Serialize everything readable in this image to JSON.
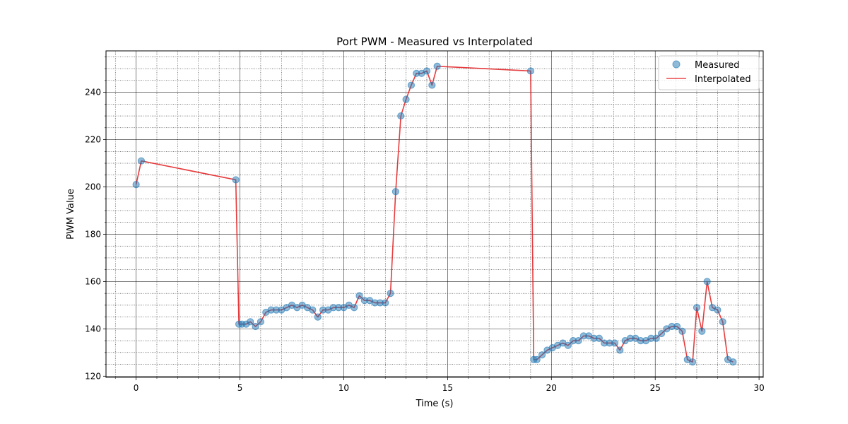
{
  "chart_data": {
    "type": "line",
    "title": "Port PWM - Measured vs Interpolated",
    "xlabel": "Time (s)",
    "ylabel": "PWM Value",
    "xlim": [
      -1.45,
      30.2
    ],
    "ylim": [
      119.5,
      257.5
    ],
    "xticks": [
      0,
      5,
      10,
      15,
      20,
      25,
      30
    ],
    "yticks": [
      120,
      140,
      160,
      180,
      200,
      220,
      240
    ],
    "grid": true,
    "minor_grid": true,
    "legend_position": "top-right",
    "legend": [
      {
        "label": "Measured",
        "marker": "circle",
        "color": "#1f77b4"
      },
      {
        "label": "Interpolated",
        "marker": "line",
        "color": "#e31a1c"
      }
    ],
    "series": [
      {
        "name": "Measured",
        "kind": "scatter",
        "color": "#1f77b4",
        "x": [
          0.0,
          0.25,
          4.8,
          4.95,
          5.1,
          5.3,
          5.5,
          5.75,
          6.0,
          6.25,
          6.5,
          6.75,
          7.0,
          7.25,
          7.5,
          7.75,
          8.0,
          8.25,
          8.5,
          8.75,
          9.0,
          9.25,
          9.5,
          9.75,
          10.0,
          10.25,
          10.5,
          10.75,
          11.0,
          11.25,
          11.5,
          11.75,
          12.0,
          12.25,
          12.5,
          12.75,
          13.0,
          13.25,
          13.5,
          13.75,
          14.0,
          14.25,
          14.5,
          19.0,
          19.15,
          19.3,
          19.55,
          19.8,
          20.05,
          20.3,
          20.55,
          20.8,
          21.05,
          21.3,
          21.55,
          21.8,
          22.05,
          22.3,
          22.55,
          22.8,
          23.05,
          23.3,
          23.55,
          23.8,
          24.05,
          24.3,
          24.55,
          24.8,
          25.05,
          25.3,
          25.55,
          25.8,
          26.05,
          26.3,
          26.55,
          26.8,
          27.0,
          27.25,
          27.5,
          27.75,
          28.0,
          28.25,
          28.5,
          28.75
        ],
        "values": [
          201,
          211,
          203,
          142,
          142,
          142,
          143,
          141,
          143,
          147,
          148,
          148,
          148,
          149,
          150,
          149,
          150,
          149,
          148,
          145,
          148,
          148,
          149,
          149,
          149,
          150,
          149,
          154,
          152,
          152,
          151,
          151,
          151,
          155,
          198,
          230,
          237,
          243,
          248,
          248,
          249,
          243,
          251,
          249,
          127,
          127,
          129,
          131,
          132,
          133,
          134,
          133,
          135,
          135,
          137,
          137,
          136,
          136,
          134,
          134,
          134,
          131,
          135,
          136,
          136,
          135,
          135,
          136,
          136,
          138,
          140,
          141,
          141,
          139,
          127,
          126,
          149,
          139,
          160,
          149,
          148,
          143,
          127,
          126
        ]
      },
      {
        "name": "Interpolated",
        "kind": "line",
        "color": "#e31a1c",
        "x": [
          0.0,
          0.25,
          4.8,
          4.95,
          5.1,
          5.3,
          5.5,
          5.75,
          6.0,
          6.25,
          6.5,
          6.75,
          7.0,
          7.25,
          7.5,
          7.75,
          8.0,
          8.25,
          8.5,
          8.75,
          9.0,
          9.25,
          9.5,
          9.75,
          10.0,
          10.25,
          10.5,
          10.75,
          11.0,
          11.25,
          11.5,
          11.75,
          12.0,
          12.25,
          12.5,
          12.75,
          13.0,
          13.25,
          13.5,
          13.75,
          14.0,
          14.25,
          14.5,
          19.0,
          19.15,
          19.3,
          19.55,
          19.8,
          20.05,
          20.3,
          20.55,
          20.8,
          21.05,
          21.3,
          21.55,
          21.8,
          22.05,
          22.3,
          22.55,
          22.8,
          23.05,
          23.3,
          23.55,
          23.8,
          24.05,
          24.3,
          24.55,
          24.8,
          25.05,
          25.3,
          25.55,
          25.8,
          26.05,
          26.3,
          26.55,
          26.8,
          27.0,
          27.25,
          27.5,
          27.75,
          28.0,
          28.25,
          28.5,
          28.75
        ],
        "values": [
          201,
          211,
          203,
          142,
          142,
          142,
          143,
          141,
          143,
          147,
          148,
          148,
          148,
          149,
          150,
          149,
          150,
          149,
          148,
          145,
          148,
          148,
          149,
          149,
          149,
          150,
          149,
          154,
          152,
          152,
          151,
          151,
          151,
          155,
          198,
          230,
          237,
          243,
          248,
          248,
          249,
          243,
          251,
          249,
          127,
          127,
          129,
          131,
          132,
          133,
          134,
          133,
          135,
          135,
          137,
          137,
          136,
          136,
          134,
          134,
          134,
          131,
          135,
          136,
          136,
          135,
          135,
          136,
          136,
          138,
          140,
          141,
          141,
          139,
          127,
          126,
          149,
          139,
          160,
          149,
          148,
          143,
          127,
          126
        ]
      }
    ]
  }
}
